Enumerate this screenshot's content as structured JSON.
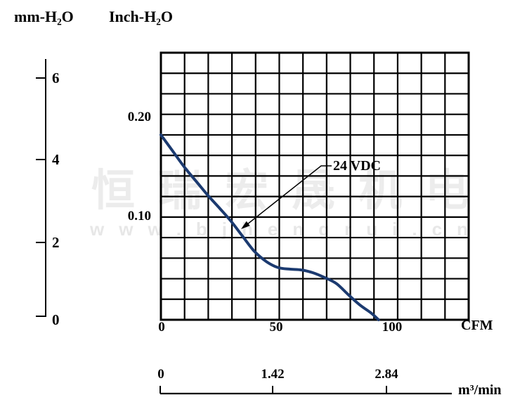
{
  "colors": {
    "curve": "#1b3a70",
    "grid": "#000000",
    "text": "#000000",
    "watermark": "#ececec"
  },
  "labels": {
    "mm_title": "mm-H₂O",
    "inch_title": "Inch-H₂O",
    "cfm_unit": "CFM",
    "m3min_unit": "m³/min",
    "annotation": "24 VDC"
  },
  "axes": {
    "mm_ticks": [
      "6",
      "4",
      "2",
      "0"
    ],
    "inch_labels": [
      "0.20",
      "0.10"
    ],
    "cfm_ticks": [
      "0",
      "50",
      "100"
    ],
    "m3min_ticks": [
      "0",
      "1.42",
      "2.84"
    ]
  },
  "watermark": {
    "text": "恒瑞宏晟机电",
    "url": "www.bjhengrui.cn"
  },
  "chart_data": {
    "type": "line",
    "title": "Fan static pressure vs airflow curve",
    "xlabel": "CFM",
    "xlabel_secondary": "m³/min",
    "ylabel": "mm-H₂O",
    "ylabel_secondary": "Inch-H₂O",
    "x_range_cfm": [
      0,
      130
    ],
    "y_range_mm": [
      0,
      6.65
    ],
    "grid": {
      "on": true,
      "cols": 13,
      "rows": 13
    },
    "axis_ticks": {
      "mm_h2o": [
        0,
        2,
        4,
        6
      ],
      "inch_h2o": [
        0.1,
        0.2
      ],
      "cfm": [
        0,
        50,
        100
      ],
      "m3_min": [
        0,
        1.42,
        2.84
      ]
    },
    "annotations": [
      {
        "label": "24 VDC",
        "points_to_curve": true
      }
    ],
    "series": [
      {
        "name": "24 VDC",
        "x_cfm": [
          0,
          5,
          10,
          15,
          20,
          25,
          30,
          35,
          40,
          45,
          50,
          55,
          60,
          65,
          70,
          75,
          80,
          85,
          90,
          93
        ],
        "y_mm_h2o": [
          4.6,
          4.2,
          3.8,
          3.45,
          3.1,
          2.78,
          2.45,
          2.07,
          1.7,
          1.45,
          1.3,
          1.26,
          1.24,
          1.17,
          1.05,
          0.9,
          0.63,
          0.37,
          0.16,
          0
        ],
        "max_static_pressure_mm": 4.6,
        "max_airflow_cfm": 93
      }
    ]
  }
}
